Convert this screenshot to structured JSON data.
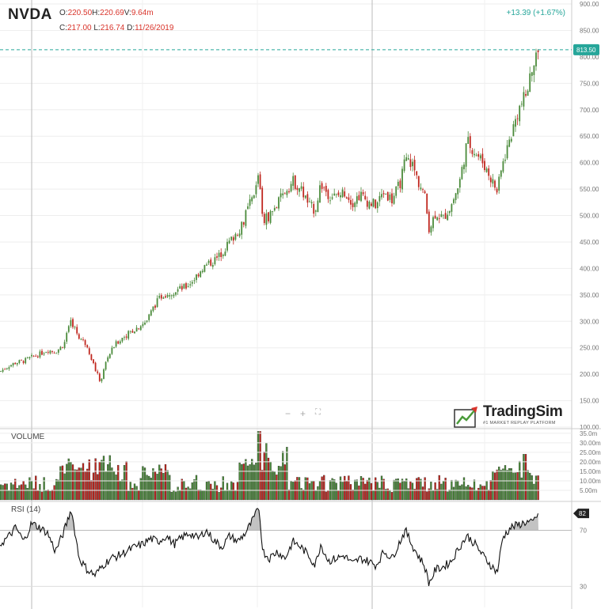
{
  "header": {
    "symbol": "NVDA",
    "open_label": "O:",
    "open": "220.50",
    "high_label": "H:",
    "high": "220.69",
    "volume_label": "V:",
    "volume": "9.64m",
    "close_label": "C:",
    "close": "217.00",
    "low_label": "L:",
    "low": "216.74",
    "date_label": "D:",
    "date": "11/26/2019",
    "change": "+13.39 (+1.67%)"
  },
  "panes": {
    "volume_title": "VOLUME",
    "rsi_title": "RSI (14)"
  },
  "zoom_controls": {
    "minus": "−",
    "plus": "+",
    "fit": "⛶"
  },
  "logo": {
    "name": "TradingSim",
    "tagline": "#1 MARKET REPLAY PLATFORM"
  },
  "colors": {
    "up": "#26a69a",
    "down": "#d9342b",
    "up_candle": "#4a8a3a",
    "down_candle": "#c0271f",
    "grid": "#eeeeee",
    "last_price": "#26a69a",
    "rsi_line": "#111111",
    "rsi_badge": "#222222"
  },
  "chart_data": [
    {
      "type": "candlestick",
      "title": "NVDA",
      "ylim": [
        100,
        900
      ],
      "y_ticks": [
        "100.00",
        "150.00",
        "200.00",
        "250.00",
        "300.00",
        "350.00",
        "400.00",
        "450.00",
        "500.00",
        "550.00",
        "600.00",
        "650.00",
        "700.00",
        "750.00",
        "800.00",
        "850.00",
        "900.00"
      ],
      "last_price_label": "813.50",
      "last_price": 813.5,
      "close_path": [
        [
          0,
          205
        ],
        [
          10,
          215
        ],
        [
          20,
          222
        ],
        [
          30,
          225
        ],
        [
          40,
          232
        ],
        [
          50,
          238
        ],
        [
          60,
          246
        ],
        [
          70,
          242
        ],
        [
          80,
          255
        ],
        [
          90,
          300
        ],
        [
          100,
          270
        ],
        [
          110,
          255
        ],
        [
          120,
          210
        ],
        [
          127,
          185
        ],
        [
          135,
          230
        ],
        [
          145,
          255
        ],
        [
          155,
          270
        ],
        [
          165,
          280
        ],
        [
          175,
          290
        ],
        [
          185,
          300
        ],
        [
          195,
          330
        ],
        [
          205,
          350
        ],
        [
          215,
          355
        ],
        [
          225,
          360
        ],
        [
          235,
          365
        ],
        [
          245,
          380
        ],
        [
          255,
          400
        ],
        [
          265,
          410
        ],
        [
          275,
          420
        ],
        [
          285,
          440
        ],
        [
          295,
          460
        ],
        [
          305,
          480
        ],
        [
          315,
          520
        ],
        [
          322,
          540
        ],
        [
          327,
          585
        ],
        [
          332,
          490
        ],
        [
          340,
          500
        ],
        [
          350,
          520
        ],
        [
          360,
          545
        ],
        [
          370,
          565
        ],
        [
          380,
          550
        ],
        [
          390,
          520
        ],
        [
          398,
          510
        ],
        [
          405,
          560
        ],
        [
          415,
          540
        ],
        [
          425,
          535
        ],
        [
          435,
          545
        ],
        [
          445,
          525
        ],
        [
          455,
          540
        ],
        [
          465,
          525
        ],
        [
          475,
          520
        ],
        [
          485,
          545
        ],
        [
          495,
          530
        ],
        [
          505,
          560
        ],
        [
          512,
          605
        ],
        [
          520,
          600
        ],
        [
          528,
          565
        ],
        [
          536,
          540
        ],
        [
          542,
          475
        ],
        [
          550,
          505
        ],
        [
          560,
          495
        ],
        [
          570,
          520
        ],
        [
          580,
          560
        ],
        [
          590,
          640
        ],
        [
          600,
          620
        ],
        [
          610,
          600
        ],
        [
          620,
          570
        ],
        [
          628,
          545
        ],
        [
          635,
          600
        ],
        [
          645,
          650
        ],
        [
          655,
          700
        ],
        [
          665,
          730
        ],
        [
          672,
          780
        ],
        [
          680,
          810
        ]
      ]
    },
    {
      "type": "bar",
      "title": "VOLUME",
      "y_ticks": [
        "5.00m",
        "10.00m",
        "15.00m",
        "20.00m",
        "25.00m",
        "30.00m",
        "35.0m"
      ],
      "ylim": [
        0,
        37
      ]
    },
    {
      "type": "line",
      "title": "RSI (14)",
      "ylim": [
        15,
        90
      ],
      "y_ticks": [
        "30",
        "70"
      ],
      "last_value_label": "82",
      "last_value": 82,
      "rsi_path": [
        [
          0,
          60
        ],
        [
          10,
          65
        ],
        [
          20,
          72
        ],
        [
          30,
          62
        ],
        [
          40,
          75
        ],
        [
          50,
          72
        ],
        [
          60,
          68
        ],
        [
          70,
          55
        ],
        [
          80,
          68
        ],
        [
          90,
          85
        ],
        [
          100,
          50
        ],
        [
          110,
          42
        ],
        [
          120,
          38
        ],
        [
          130,
          45
        ],
        [
          140,
          50
        ],
        [
          150,
          52
        ],
        [
          160,
          55
        ],
        [
          170,
          58
        ],
        [
          180,
          60
        ],
        [
          190,
          64
        ],
        [
          200,
          62
        ],
        [
          210,
          66
        ],
        [
          220,
          60
        ],
        [
          230,
          65
        ],
        [
          240,
          68
        ],
        [
          250,
          64
        ],
        [
          260,
          70
        ],
        [
          270,
          63
        ],
        [
          280,
          58
        ],
        [
          290,
          66
        ],
        [
          300,
          62
        ],
        [
          310,
          68
        ],
        [
          320,
          78
        ],
        [
          327,
          86
        ],
        [
          332,
          55
        ],
        [
          340,
          50
        ],
        [
          350,
          55
        ],
        [
          360,
          50
        ],
        [
          370,
          62
        ],
        [
          380,
          58
        ],
        [
          390,
          52
        ],
        [
          398,
          45
        ],
        [
          405,
          60
        ],
        [
          415,
          48
        ],
        [
          425,
          50
        ],
        [
          435,
          52
        ],
        [
          445,
          46
        ],
        [
          455,
          50
        ],
        [
          465,
          48
        ],
        [
          475,
          45
        ],
        [
          485,
          55
        ],
        [
          495,
          50
        ],
        [
          505,
          62
        ],
        [
          512,
          70
        ],
        [
          520,
          60
        ],
        [
          528,
          52
        ],
        [
          536,
          45
        ],
        [
          542,
          32
        ],
        [
          550,
          42
        ],
        [
          560,
          44
        ],
        [
          570,
          48
        ],
        [
          580,
          58
        ],
        [
          590,
          66
        ],
        [
          600,
          60
        ],
        [
          610,
          52
        ],
        [
          620,
          45
        ],
        [
          628,
          40
        ],
        [
          635,
          65
        ],
        [
          645,
          72
        ],
        [
          655,
          74
        ],
        [
          665,
          76
        ],
        [
          672,
          75
        ],
        [
          680,
          82
        ]
      ]
    }
  ]
}
